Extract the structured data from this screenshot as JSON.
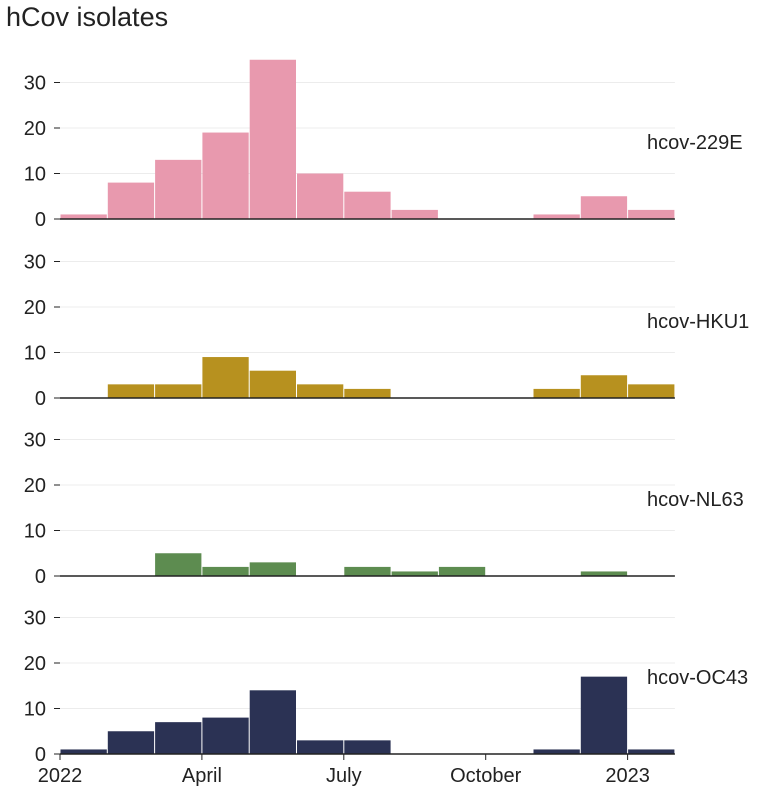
{
  "title": "hCov isolates",
  "chart_data": {
    "type": "bar",
    "title": "hCov isolates",
    "x_tick_labels": [
      "2022",
      "April",
      "July",
      "October",
      "2023"
    ],
    "y_ticks": [
      0,
      10,
      20,
      30
    ],
    "ylim": [
      0,
      36
    ],
    "bins": [
      "2022-01",
      "2022-02",
      "2022-03",
      "2022-04",
      "2022-05",
      "2022-06",
      "2022-07",
      "2022-08",
      "2022-09",
      "2022-10",
      "2022-11",
      "2022-12",
      "2023-01"
    ],
    "grid": true,
    "series": [
      {
        "name": "hcov-229E",
        "color": "#e899ae",
        "values": [
          1,
          8,
          13,
          19,
          35,
          10,
          6,
          2,
          0,
          0,
          1,
          5,
          2
        ]
      },
      {
        "name": "hcov-HKU1",
        "color": "#b7911f",
        "values": [
          0,
          3,
          3,
          9,
          6,
          3,
          2,
          0,
          0,
          0,
          2,
          5,
          3
        ]
      },
      {
        "name": "hcov-NL63",
        "color": "#5d8c50",
        "values": [
          0,
          0,
          5,
          2,
          3,
          0,
          2,
          1,
          2,
          0,
          0,
          1,
          0
        ]
      },
      {
        "name": "hcov-OC43",
        "color": "#2b3254",
        "values": [
          1,
          5,
          7,
          8,
          14,
          3,
          3,
          0,
          0,
          0,
          1,
          17,
          1
        ]
      }
    ]
  }
}
